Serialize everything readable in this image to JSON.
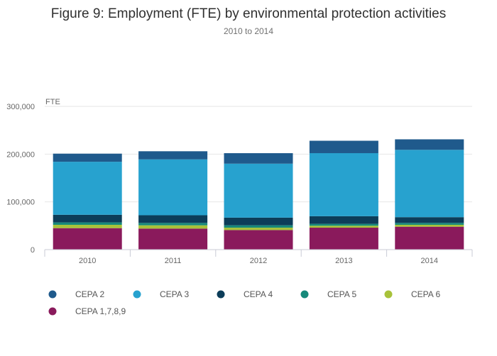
{
  "chart_data": {
    "type": "bar",
    "stacked": true,
    "title": "Figure 9: Employment (FTE) by environmental protection activities",
    "subtitle": "2010 to 2014",
    "ylabel": "FTE",
    "xlabel": "",
    "categories": [
      "2010",
      "2011",
      "2012",
      "2013",
      "2014"
    ],
    "ylim": [
      0,
      300000
    ],
    "yticks": [
      0,
      100000,
      200000,
      300000
    ],
    "ytick_labels": [
      "0",
      "100,000",
      "200,000",
      "300,000"
    ],
    "grid": true,
    "legend_placement": "bottom",
    "series": [
      {
        "name": "CEPA 1,7,8,9",
        "color": "#8a1a5c",
        "values": [
          45000,
          44000,
          41000,
          46000,
          48000
        ]
      },
      {
        "name": "CEPA 6",
        "color": "#a8c23a",
        "values": [
          7000,
          7000,
          5000,
          4000,
          4000
        ]
      },
      {
        "name": "CEPA 5",
        "color": "#16897a",
        "values": [
          5000,
          5000,
          5000,
          4000,
          4000
        ]
      },
      {
        "name": "CEPA 4",
        "color": "#0c3d59",
        "values": [
          16000,
          16000,
          16000,
          16000,
          12000
        ]
      },
      {
        "name": "CEPA 3",
        "color": "#27a2cf",
        "values": [
          111000,
          117000,
          113000,
          132000,
          141000
        ]
      },
      {
        "name": "CEPA 2",
        "color": "#1f5a8c",
        "values": [
          17000,
          17000,
          22000,
          26000,
          22000
        ]
      }
    ],
    "legend_order": [
      "CEPA 2",
      "CEPA 3",
      "CEPA 4",
      "CEPA 5",
      "CEPA 6",
      "CEPA 1,7,8,9"
    ]
  }
}
